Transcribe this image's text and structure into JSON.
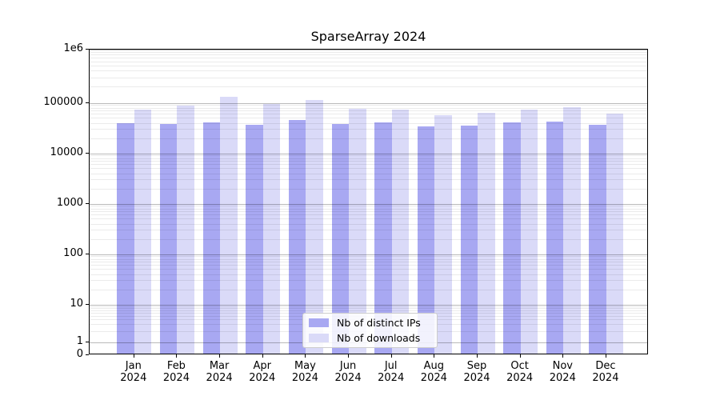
{
  "title": "SparseArray 2024",
  "legend": {
    "items": [
      {
        "label": "Nb of distinct IPs",
        "color": "#a8a8f2"
      },
      {
        "label": "Nb of downloads",
        "color": "#dadaf8"
      }
    ]
  },
  "y_axis": {
    "ticks": [
      {
        "label": "1e6",
        "value": 1000000
      },
      {
        "label": "100000",
        "value": 100000
      },
      {
        "label": "10000",
        "value": 10000
      },
      {
        "label": "1000",
        "value": 1000
      },
      {
        "label": "100",
        "value": 100
      },
      {
        "label": "10",
        "value": 10
      },
      {
        "label": "1",
        "value": 1
      },
      {
        "label": "0",
        "value": 0
      }
    ]
  },
  "x_axis": {
    "months": [
      "Jan",
      "Feb",
      "Mar",
      "Apr",
      "May",
      "Jun",
      "Jul",
      "Aug",
      "Sep",
      "Oct",
      "Nov",
      "Dec"
    ],
    "year": "2024"
  },
  "chart_data": {
    "type": "bar",
    "title": "SparseArray 2024",
    "categories": [
      "Jan 2024",
      "Feb 2024",
      "Mar 2024",
      "Apr 2024",
      "May 2024",
      "Jun 2024",
      "Jul 2024",
      "Aug 2024",
      "Sep 2024",
      "Oct 2024",
      "Nov 2024",
      "Dec 2024"
    ],
    "series": [
      {
        "name": "Nb of distinct IPs",
        "color": "#a8a8f2",
        "values": [
          39000,
          38500,
          41500,
          37000,
          45500,
          38500,
          40500,
          34000,
          35500,
          40500,
          42000,
          36000
        ]
      },
      {
        "name": "Nb of downloads",
        "color": "#dadaf8",
        "values": [
          74500,
          88000,
          130000,
          93000,
          112000,
          77000,
          73000,
          57500,
          64000,
          72000,
          80500,
          62000
        ]
      }
    ],
    "yscale": "symlog",
    "ylim": [
      0,
      1000000
    ],
    "y_tick_labels": [
      "1e6",
      "100000",
      "10000",
      "1000",
      "100",
      "10",
      "1",
      "0"
    ],
    "grid": "major+minor horizontal",
    "legend_position": "lower center"
  }
}
